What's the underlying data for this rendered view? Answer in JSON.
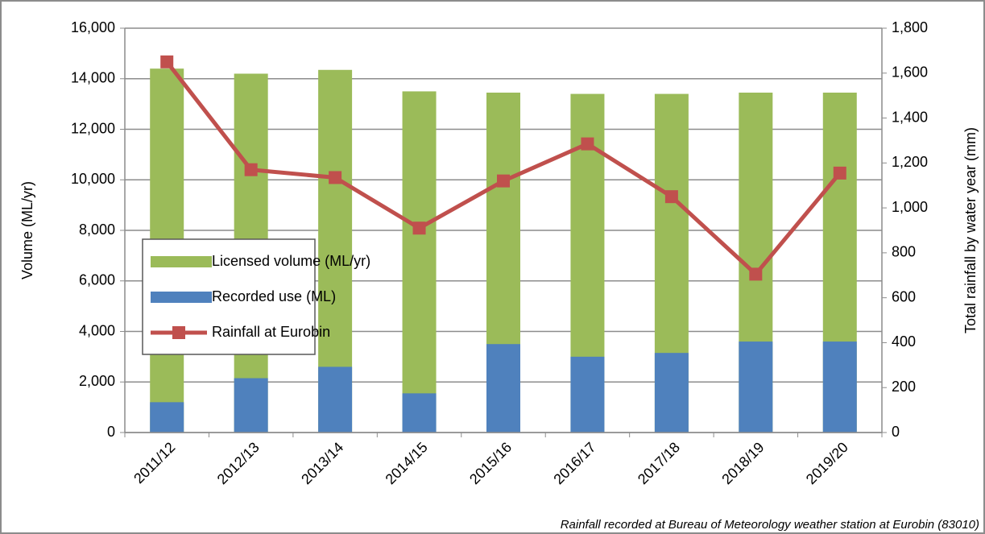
{
  "chart_data": {
    "type": "bar",
    "categories": [
      "2011/12",
      "2012/13",
      "2013/14",
      "2014/15",
      "2015/16",
      "2016/17",
      "2017/18",
      "2018/19",
      "2019/20"
    ],
    "series": [
      {
        "name": "Licensed volume (ML/yr)",
        "color": "#9bbb59",
        "values": [
          14400,
          14200,
          14350,
          13500,
          13450,
          13400,
          13400,
          13450,
          13450
        ]
      },
      {
        "name": "Recorded use (ML)",
        "color": "#4f81bd",
        "values": [
          1200,
          2150,
          2600,
          1550,
          3500,
          3000,
          3150,
          3600,
          3600
        ]
      },
      {
        "name": "Rainfall at Eurobin",
        "color": "#c0504d",
        "type": "line",
        "axis": "y2",
        "values": [
          1650,
          1170,
          1135,
          910,
          1120,
          1285,
          1050,
          705,
          1155
        ]
      }
    ],
    "y_label": "Volume (ML/yr)",
    "y2_label": "Total rainfall by water year (mm)",
    "ylim": [
      0,
      16000
    ],
    "yticks": [
      0,
      {
        "value": 2000,
        "label": "2,000"
      },
      {
        "value": 4000,
        "label": "4,000"
      },
      {
        "value": 6000,
        "label": "6,000"
      },
      {
        "value": 8000,
        "label": "8,000"
      },
      {
        "value": 10000,
        "label": "10,000"
      },
      {
        "value": 12000,
        "label": "12,000"
      },
      {
        "value": 14000,
        "label": "14,000"
      },
      {
        "value": 16000,
        "label": "16,000"
      }
    ],
    "y2lim": [
      0,
      1800
    ],
    "y2ticks": [
      0,
      200,
      400,
      600,
      800,
      {
        "value": 1000,
        "label": "1,000"
      },
      {
        "value": 1200,
        "label": "1,200"
      },
      {
        "value": 1400,
        "label": "1,400"
      },
      {
        "value": 1600,
        "label": "1,600"
      },
      {
        "value": 1800,
        "label": "1,800"
      }
    ],
    "grid": true,
    "annotation": "Rainfall recorded at Bureau of Meteorology weather station at Eurobin (83010)"
  }
}
